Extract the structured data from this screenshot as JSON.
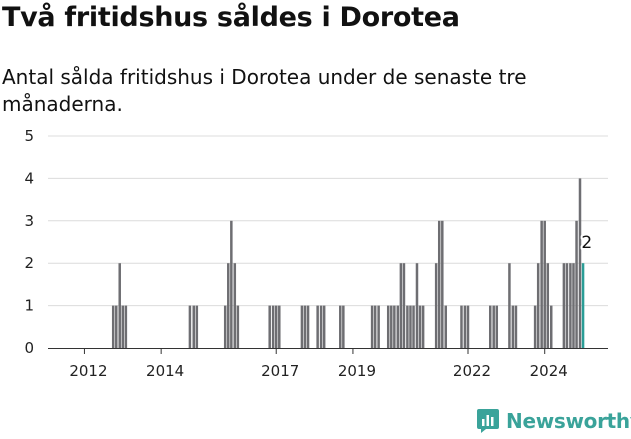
{
  "chart_data": {
    "type": "bar",
    "title": "Två fritidshus såldes i Dorotea",
    "subtitle": "Antal sålda fritidshus i Dorotea under de senaste tre månaderna.",
    "xlabel": "",
    "ylabel": "",
    "ylim": [
      0,
      5
    ],
    "xlim": [
      2011.05,
      2025.65
    ],
    "y_ticks": [
      "0",
      "1",
      "2",
      "3",
      "4",
      "5"
    ],
    "x_ticks": [
      {
        "year": 2012,
        "label": "2012"
      },
      {
        "year": 2014,
        "label": "2014"
      },
      {
        "year": 2017,
        "label": "2017"
      },
      {
        "year": 2019,
        "label": "2019"
      },
      {
        "year": 2022,
        "label": "2022"
      },
      {
        "year": 2024,
        "label": "2024"
      }
    ],
    "grid": true,
    "legend": "none",
    "bar_color": "#6e6e72",
    "highlight_color": "#2a9d96",
    "series": [
      {
        "values": [
          [
            2012.75,
            1
          ],
          [
            2012.83,
            1
          ],
          [
            2012.92,
            2
          ],
          [
            2013.0,
            1
          ],
          [
            2013.08,
            1
          ],
          [
            2014.75,
            1
          ],
          [
            2014.85,
            1
          ],
          [
            2014.93,
            1
          ],
          [
            2015.67,
            1
          ],
          [
            2015.75,
            2
          ],
          [
            2015.83,
            3
          ],
          [
            2015.92,
            2
          ],
          [
            2016.0,
            1
          ],
          [
            2016.83,
            1
          ],
          [
            2016.92,
            1
          ],
          [
            2017.0,
            1
          ],
          [
            2017.08,
            1
          ],
          [
            2017.67,
            1
          ],
          [
            2017.75,
            1
          ],
          [
            2017.83,
            1
          ],
          [
            2018.08,
            1
          ],
          [
            2018.17,
            1
          ],
          [
            2018.25,
            1
          ],
          [
            2018.67,
            1
          ],
          [
            2018.75,
            1
          ],
          [
            2019.5,
            1
          ],
          [
            2019.58,
            1
          ],
          [
            2019.67,
            1
          ],
          [
            2019.92,
            1
          ],
          [
            2020.0,
            1
          ],
          [
            2020.08,
            1
          ],
          [
            2020.17,
            1
          ],
          [
            2020.25,
            2
          ],
          [
            2020.33,
            2
          ],
          [
            2020.42,
            1
          ],
          [
            2020.5,
            1
          ],
          [
            2020.58,
            1
          ],
          [
            2020.67,
            2
          ],
          [
            2020.75,
            1
          ],
          [
            2020.83,
            1
          ],
          [
            2021.17,
            2
          ],
          [
            2021.25,
            3
          ],
          [
            2021.33,
            3
          ],
          [
            2021.42,
            1
          ],
          [
            2021.83,
            1
          ],
          [
            2021.92,
            1
          ],
          [
            2022.0,
            1
          ],
          [
            2022.58,
            1
          ],
          [
            2022.67,
            1
          ],
          [
            2022.75,
            1
          ],
          [
            2023.08,
            2
          ],
          [
            2023.17,
            1
          ],
          [
            2023.25,
            1
          ],
          [
            2023.75,
            1
          ],
          [
            2023.83,
            2
          ],
          [
            2023.92,
            3
          ],
          [
            2024.0,
            3
          ],
          [
            2024.08,
            2
          ],
          [
            2024.17,
            1
          ],
          [
            2024.5,
            2
          ],
          [
            2024.58,
            2
          ],
          [
            2024.67,
            2
          ],
          [
            2024.75,
            2
          ],
          [
            2024.83,
            3
          ],
          [
            2024.92,
            4
          ]
        ]
      }
    ],
    "highlight": {
      "x": 2025.0,
      "value": 2,
      "label": "2"
    }
  },
  "branding": {
    "name": "Newsworthy",
    "icon": "newsworthy-chart-icon",
    "color": "#3aa39a"
  }
}
